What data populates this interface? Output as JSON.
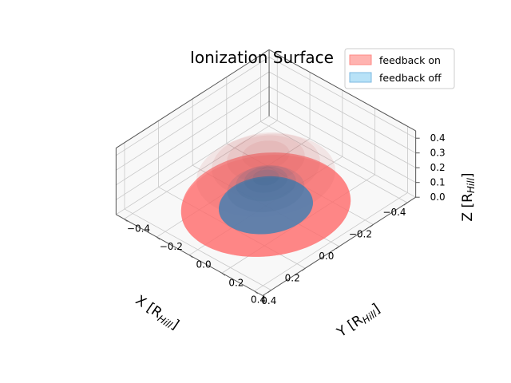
{
  "chart_data": {
    "type": "surface3d",
    "title": "Ionization Surface",
    "xlabel": "X [R",
    "ylabel": "Y [R",
    "zlabel": "Z [R",
    "label_subscript": "Hill",
    "label_close": "]",
    "xlim": [
      -0.45,
      0.45
    ],
    "ylim": [
      -0.45,
      0.45
    ],
    "zlim": [
      0.0,
      0.45
    ],
    "xticks": [
      {
        "value": 0.4,
        "label": "0.4"
      },
      {
        "value": 0.2,
        "label": "0.2"
      },
      {
        "value": 0.0,
        "label": "0.0"
      },
      {
        "value": -0.2,
        "label": "−0.2"
      },
      {
        "value": -0.4,
        "label": "−0.4"
      }
    ],
    "yticks": [
      {
        "value": 0.4,
        "label": "0.4"
      },
      {
        "value": 0.2,
        "label": "0.2"
      },
      {
        "value": 0.0,
        "label": "0.0"
      },
      {
        "value": -0.2,
        "label": "−0.2"
      },
      {
        "value": -0.4,
        "label": "−0.4"
      }
    ],
    "zticks": [
      {
        "value": 0.0,
        "label": "0.0"
      },
      {
        "value": 0.1,
        "label": "0.1"
      },
      {
        "value": 0.2,
        "label": "0.2"
      },
      {
        "value": 0.3,
        "label": "0.3"
      },
      {
        "value": 0.4,
        "label": "0.4"
      }
    ],
    "series": [
      {
        "name": "feedback on",
        "shape": "hemisphere",
        "radius": 0.36,
        "color": "#ff6b6b",
        "legend_face": "#ffb3b0",
        "legend_edge": "#ff8a85"
      },
      {
        "name": "feedback off",
        "shape": "hemisphere",
        "radius": 0.2,
        "color": "#4a7fb0",
        "legend_face": "#b8e2f7",
        "legend_edge": "#7cb8e0"
      }
    ],
    "legend_position": "top-right",
    "view": {
      "elevation_deg": 30,
      "azimuth_deg": -135
    }
  }
}
